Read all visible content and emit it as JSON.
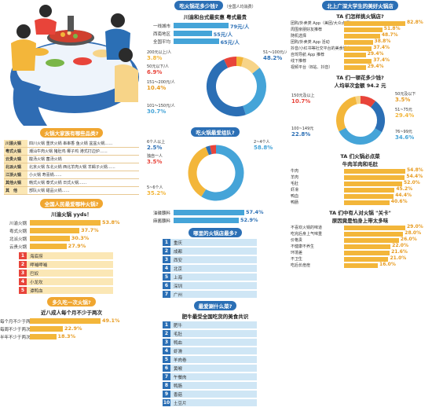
{
  "col1": {
    "q_types": "火锅大家族有哪些品类?",
    "types_table": [
      {
        "k": "川渝火锅",
        "v": "四川火锅 重庆火锅 串串香 鱼火锅 盆盆火锅……"
      },
      {
        "k": "粤式火锅",
        "v": "潮汕牛肉火锅 猪肚鸡 椰子鸡 港式打边炉……"
      },
      {
        "k": "云贵火锅",
        "v": "酸汤火锅 菌汤火锅"
      },
      {
        "k": "北派火锅",
        "v": "北京火锅 东北火锅 西北羊肉火锅 羊蝎子火锅……"
      },
      {
        "k": "江浙火锅",
        "v": "小火锅 寿喜锅……"
      },
      {
        "k": "其他火锅",
        "v": "韩式火锅 泰式火锅 日式火锅……"
      },
      {
        "k": "其　他",
        "v": "部队火锅 甜品火锅……"
      }
    ],
    "q_fav": "全国人民最爱哪种火锅?",
    "fav_sub": "川渝火锅 yyds！",
    "fav_chart": {
      "type": "bar",
      "categories": [
        "川渝火锅",
        "粤式火锅",
        "北派火锅",
        "云贵火锅"
      ],
      "values": [
        53.8,
        37.7,
        30.3,
        27.9
      ],
      "unit": "%"
    },
    "ranks": [
      "海底捞",
      "呷哺呷哺",
      "巴奴",
      "小龙坎",
      "谭鸭血"
    ],
    "q_freq": "多久吃一次火锅?",
    "freq_sub": "近八成人每个月不少于两次",
    "freq_chart": {
      "type": "bar",
      "categories": [
        "每个月不少于两次",
        "每周不少于两次",
        "半年不少于两次"
      ],
      "values": [
        49.1,
        22.9,
        18.3
      ],
      "unit": "%"
    }
  },
  "col2": {
    "q_price": "吃火锅花多少钱?",
    "q_price_note": "（全国人均消费）",
    "price_sub": "川渝和台式最实惠 粤式最贵",
    "price_chart": {
      "type": "bar",
      "categories": [
        "一线城市",
        "西南地区",
        "全国平均"
      ],
      "values": [
        79,
        55,
        65
      ],
      "unit": "元/人"
    },
    "spend_donut": {
      "type": "pie",
      "labels": [
        "200元以上/人",
        "151～200元/人",
        "101～150元/人",
        "51～100元/人",
        "50元以下/人"
      ],
      "values": [
        3.8,
        10.4,
        30.7,
        48.2,
        6.9
      ],
      "colors": [
        "#f3b63a",
        "#f7d488",
        "#45a4d8",
        "#2b6fb5",
        "#e8443a"
      ]
    },
    "q_group": "吃火锅最爱组队?",
    "group_donut": {
      "type": "pie",
      "labels": [
        "2~4个人",
        "5~6个人",
        "6个人以上",
        "独自一人"
      ],
      "values": [
        58.8,
        35.2,
        2.5,
        3.5
      ],
      "colors": [
        "#45a4d8",
        "#f3b63a",
        "#2b6fb5",
        "#e8443a"
      ]
    },
    "seasoning_chart": {
      "type": "bar",
      "categories": [
        "油碟蘸料",
        "麻酱蘸料"
      ],
      "values": [
        57.4,
        52.9
      ],
      "unit": "%"
    },
    "q_cities": "哪里的火锅店最多?",
    "city_ranks": [
      "重庆",
      "成都",
      "西安",
      "北京",
      "上海",
      "深圳",
      "广州"
    ],
    "q_dish": "最爱涮什么菜?",
    "dish_sub": "肥牛最受全国吃货的美食共识",
    "dish_ranks": [
      "肥牛",
      "毛肚",
      "鸭血",
      "虾滑",
      "羊肉卷",
      "黄喉",
      "午餐肉",
      "鸭肠",
      "香菇",
      "土豆片"
    ]
  },
  "col3": {
    "q_go": "北上广深大学生的美好火锅店",
    "go_sub": "TA 们怎样挑火锅店?",
    "go_chart": {
      "type": "bar",
      "categories": [
        "团购/外卖类 App（美团/大众点评）",
        "周围亲朋好友推荐",
        "随机选择",
        "团购/外卖类 App 活动",
        "抖音/小红书等社交平台的美食博主",
        "自驾导航 App 推荐",
        "线下推荐",
        "视频平台（B站、抖音）"
      ],
      "values": [
        82.8,
        51.8,
        48.7,
        38.8,
        37.4,
        29.4,
        37.4,
        29.4
      ],
      "unit": "%"
    },
    "q_spend": "TA 们一顿花多少钱?",
    "spend_sub": "人均单次金额 94.2 元",
    "spend_donut": {
      "type": "pie",
      "labels": [
        "150元及以上",
        "100~149元",
        "76~99元",
        "51~75元",
        "50元及以下"
      ],
      "values": [
        10.7,
        22.8,
        34.6,
        29.4,
        3.5
      ],
      "colors": [
        "#e8443a",
        "#2b6fb5",
        "#45a4d8",
        "#f3b63a",
        "#f7d488"
      ]
    },
    "q_dish": "TA 们火锅必点菜",
    "dish_sub": "牛肉羊肉和毛肚",
    "dish_chart": {
      "type": "bar",
      "categories": [
        "牛肉",
        "羊肉",
        "毛肚",
        "虾滑",
        "鸭血",
        "鸭肠"
      ],
      "values": [
        54.8,
        54.4,
        52.0,
        45.2,
        44.4,
        40.6
      ],
      "unit": "%"
    },
    "q_care": "TA 们中有人对火锅 \"关卡\"",
    "care_sub": "原因竟是怕身上带太多味",
    "care_chart": {
      "type": "bar",
      "categories": [
        "不喜欢火锅的味道",
        "吃完后身上气味重",
        "价格贵",
        "不健康不养生",
        "环境差",
        "不卫生",
        "吃后长痘痘"
      ],
      "values": [
        29.0,
        28.0,
        26.0,
        22.0,
        21.6,
        21.0,
        16.0
      ],
      "unit": "%"
    }
  }
}
